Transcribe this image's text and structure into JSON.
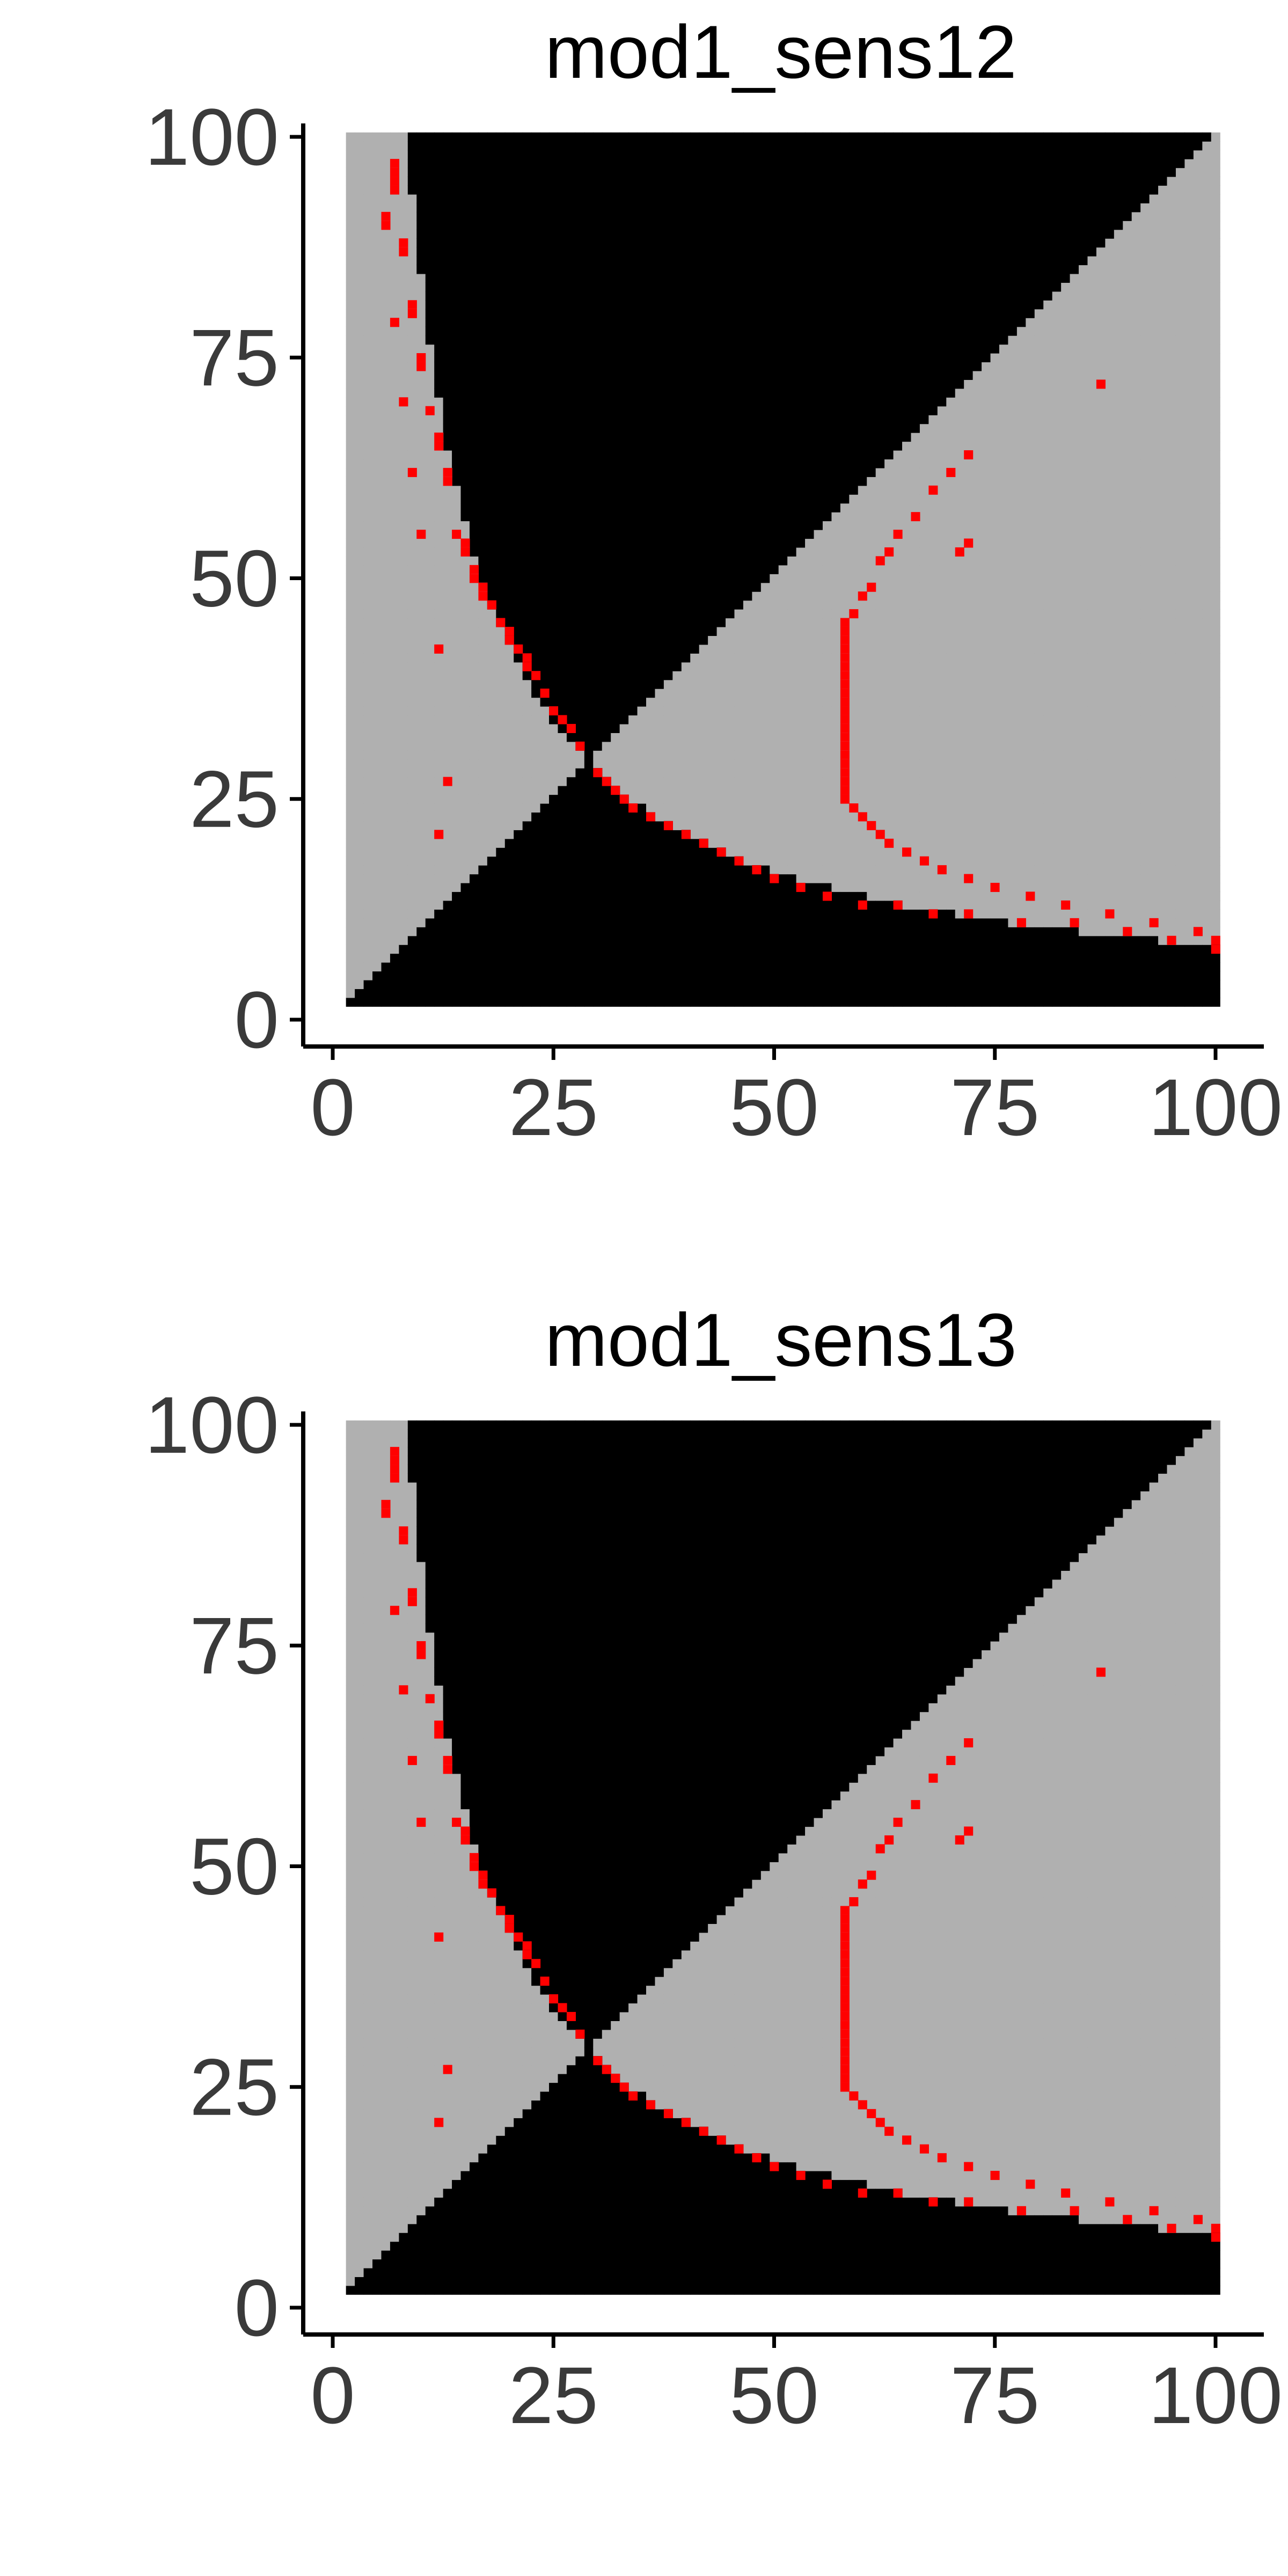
{
  "colors": {
    "background": "#ffffff",
    "black_region": "#000000",
    "gray_region": "#b0b0b0",
    "red_points": "#ff0000",
    "axis": "#000000",
    "tick_text": "#3a3a3a"
  },
  "chart_data": [
    {
      "type": "heatmap",
      "title": "mod1_sens12",
      "xlabel": "",
      "ylabel": "",
      "xlim": [
        0,
        100
      ],
      "ylim": [
        0,
        100
      ],
      "x_ticks": [
        "0",
        "25",
        "50",
        "75",
        "100"
      ],
      "y_ticks": [
        "0",
        "25",
        "50",
        "75",
        "100"
      ],
      "grid": false,
      "legend": "none",
      "cell_range": [
        2,
        100
      ],
      "categories": [
        "black",
        "gray",
        "red"
      ],
      "boundary_curve_constant": 841,
      "red_points": [
        [
          7,
          97
        ],
        [
          7,
          96
        ],
        [
          7,
          95
        ],
        [
          7,
          94
        ],
        [
          6,
          91
        ],
        [
          6,
          90
        ],
        [
          8,
          88
        ],
        [
          8,
          87
        ],
        [
          9,
          81
        ],
        [
          9,
          80
        ],
        [
          7,
          79
        ],
        [
          10,
          75
        ],
        [
          10,
          74
        ],
        [
          8,
          70
        ],
        [
          11,
          69
        ],
        [
          12,
          66
        ],
        [
          12,
          65
        ],
        [
          9,
          62
        ],
        [
          13,
          62
        ],
        [
          13,
          61
        ],
        [
          10,
          55
        ],
        [
          14,
          55
        ],
        [
          15,
          54
        ],
        [
          15,
          53
        ],
        [
          16,
          51
        ],
        [
          16,
          50
        ],
        [
          17,
          49
        ],
        [
          17,
          48
        ],
        [
          18,
          47
        ],
        [
          19,
          45
        ],
        [
          20,
          44
        ],
        [
          20,
          43
        ],
        [
          21,
          42
        ],
        [
          12,
          42
        ],
        [
          22,
          41
        ],
        [
          22,
          40
        ],
        [
          23,
          39
        ],
        [
          24,
          37
        ],
        [
          25,
          35
        ],
        [
          26,
          34
        ],
        [
          27,
          33
        ],
        [
          28,
          31
        ],
        [
          13,
          27
        ],
        [
          12,
          21
        ],
        [
          30,
          28
        ],
        [
          31,
          27
        ],
        [
          32,
          26
        ],
        [
          33,
          25
        ],
        [
          34,
          24
        ],
        [
          36,
          23
        ],
        [
          38,
          22
        ],
        [
          40,
          21
        ],
        [
          42,
          20
        ],
        [
          44,
          19
        ],
        [
          46,
          18
        ],
        [
          48,
          17
        ],
        [
          50,
          16
        ],
        [
          53,
          15
        ],
        [
          56,
          14
        ],
        [
          60,
          13
        ],
        [
          64,
          13
        ],
        [
          68,
          12
        ],
        [
          72,
          12
        ],
        [
          78,
          11
        ],
        [
          84,
          11
        ],
        [
          90,
          10
        ],
        [
          95,
          9
        ],
        [
          100,
          9
        ],
        [
          100,
          8
        ],
        [
          58,
          45
        ],
        [
          58,
          44
        ],
        [
          58,
          43
        ],
        [
          58,
          42
        ],
        [
          58,
          41
        ],
        [
          58,
          40
        ],
        [
          58,
          39
        ],
        [
          58,
          38
        ],
        [
          58,
          37
        ],
        [
          58,
          36
        ],
        [
          58,
          35
        ],
        [
          58,
          34
        ],
        [
          58,
          33
        ],
        [
          58,
          32
        ],
        [
          58,
          31
        ],
        [
          58,
          30
        ],
        [
          58,
          29
        ],
        [
          58,
          28
        ],
        [
          58,
          27
        ],
        [
          58,
          26
        ],
        [
          58,
          25
        ],
        [
          59,
          46
        ],
        [
          60,
          48
        ],
        [
          61,
          49
        ],
        [
          62,
          52
        ],
        [
          63,
          53
        ],
        [
          64,
          55
        ],
        [
          66,
          57
        ],
        [
          68,
          60
        ],
        [
          70,
          62
        ],
        [
          72,
          64
        ],
        [
          59,
          24
        ],
        [
          60,
          23
        ],
        [
          61,
          22
        ],
        [
          62,
          21
        ],
        [
          63,
          20
        ],
        [
          65,
          19
        ],
        [
          67,
          18
        ],
        [
          69,
          17
        ],
        [
          72,
          16
        ],
        [
          75,
          15
        ],
        [
          79,
          14
        ],
        [
          83,
          13
        ],
        [
          88,
          12
        ],
        [
          93,
          11
        ],
        [
          98,
          10
        ],
        [
          87,
          72
        ],
        [
          71,
          53
        ],
        [
          72,
          54
        ]
      ]
    },
    {
      "type": "heatmap",
      "title": "mod1_sens13",
      "xlabel": "",
      "ylabel": "",
      "xlim": [
        0,
        100
      ],
      "ylim": [
        0,
        100
      ],
      "x_ticks": [
        "0",
        "25",
        "50",
        "75",
        "100"
      ],
      "y_ticks": [
        "0",
        "25",
        "50",
        "75",
        "100"
      ],
      "grid": false,
      "legend": "none",
      "cell_range": [
        2,
        100
      ],
      "categories": [
        "black",
        "gray",
        "red"
      ],
      "boundary_curve_constant": 841,
      "red_points": [
        [
          7,
          97
        ],
        [
          7,
          96
        ],
        [
          7,
          95
        ],
        [
          7,
          94
        ],
        [
          6,
          91
        ],
        [
          6,
          90
        ],
        [
          8,
          88
        ],
        [
          8,
          87
        ],
        [
          9,
          81
        ],
        [
          9,
          80
        ],
        [
          7,
          79
        ],
        [
          10,
          75
        ],
        [
          10,
          74
        ],
        [
          8,
          70
        ],
        [
          11,
          69
        ],
        [
          12,
          66
        ],
        [
          12,
          65
        ],
        [
          9,
          62
        ],
        [
          13,
          62
        ],
        [
          13,
          61
        ],
        [
          10,
          55
        ],
        [
          14,
          55
        ],
        [
          15,
          54
        ],
        [
          15,
          53
        ],
        [
          16,
          51
        ],
        [
          16,
          50
        ],
        [
          17,
          49
        ],
        [
          17,
          48
        ],
        [
          18,
          47
        ],
        [
          19,
          45
        ],
        [
          20,
          44
        ],
        [
          20,
          43
        ],
        [
          21,
          42
        ],
        [
          12,
          42
        ],
        [
          22,
          41
        ],
        [
          22,
          40
        ],
        [
          23,
          39
        ],
        [
          24,
          37
        ],
        [
          25,
          35
        ],
        [
          26,
          34
        ],
        [
          27,
          33
        ],
        [
          28,
          31
        ],
        [
          13,
          27
        ],
        [
          12,
          21
        ],
        [
          30,
          28
        ],
        [
          31,
          27
        ],
        [
          32,
          26
        ],
        [
          33,
          25
        ],
        [
          34,
          24
        ],
        [
          36,
          23
        ],
        [
          38,
          22
        ],
        [
          40,
          21
        ],
        [
          42,
          20
        ],
        [
          44,
          19
        ],
        [
          46,
          18
        ],
        [
          48,
          17
        ],
        [
          50,
          16
        ],
        [
          53,
          15
        ],
        [
          56,
          14
        ],
        [
          60,
          13
        ],
        [
          64,
          13
        ],
        [
          68,
          12
        ],
        [
          72,
          12
        ],
        [
          78,
          11
        ],
        [
          84,
          11
        ],
        [
          90,
          10
        ],
        [
          95,
          9
        ],
        [
          100,
          9
        ],
        [
          100,
          8
        ],
        [
          58,
          45
        ],
        [
          58,
          44
        ],
        [
          58,
          43
        ],
        [
          58,
          42
        ],
        [
          58,
          41
        ],
        [
          58,
          40
        ],
        [
          58,
          39
        ],
        [
          58,
          38
        ],
        [
          58,
          37
        ],
        [
          58,
          36
        ],
        [
          58,
          35
        ],
        [
          58,
          34
        ],
        [
          58,
          33
        ],
        [
          58,
          32
        ],
        [
          58,
          31
        ],
        [
          58,
          30
        ],
        [
          58,
          29
        ],
        [
          58,
          28
        ],
        [
          58,
          27
        ],
        [
          58,
          26
        ],
        [
          58,
          25
        ],
        [
          59,
          46
        ],
        [
          60,
          48
        ],
        [
          61,
          49
        ],
        [
          62,
          52
        ],
        [
          63,
          53
        ],
        [
          64,
          55
        ],
        [
          66,
          57
        ],
        [
          68,
          60
        ],
        [
          70,
          62
        ],
        [
          72,
          64
        ],
        [
          59,
          24
        ],
        [
          60,
          23
        ],
        [
          61,
          22
        ],
        [
          62,
          21
        ],
        [
          63,
          20
        ],
        [
          65,
          19
        ],
        [
          67,
          18
        ],
        [
          69,
          17
        ],
        [
          72,
          16
        ],
        [
          75,
          15
        ],
        [
          79,
          14
        ],
        [
          83,
          13
        ],
        [
          88,
          12
        ],
        [
          93,
          11
        ],
        [
          98,
          10
        ],
        [
          87,
          72
        ],
        [
          71,
          53
        ],
        [
          72,
          54
        ]
      ]
    }
  ]
}
